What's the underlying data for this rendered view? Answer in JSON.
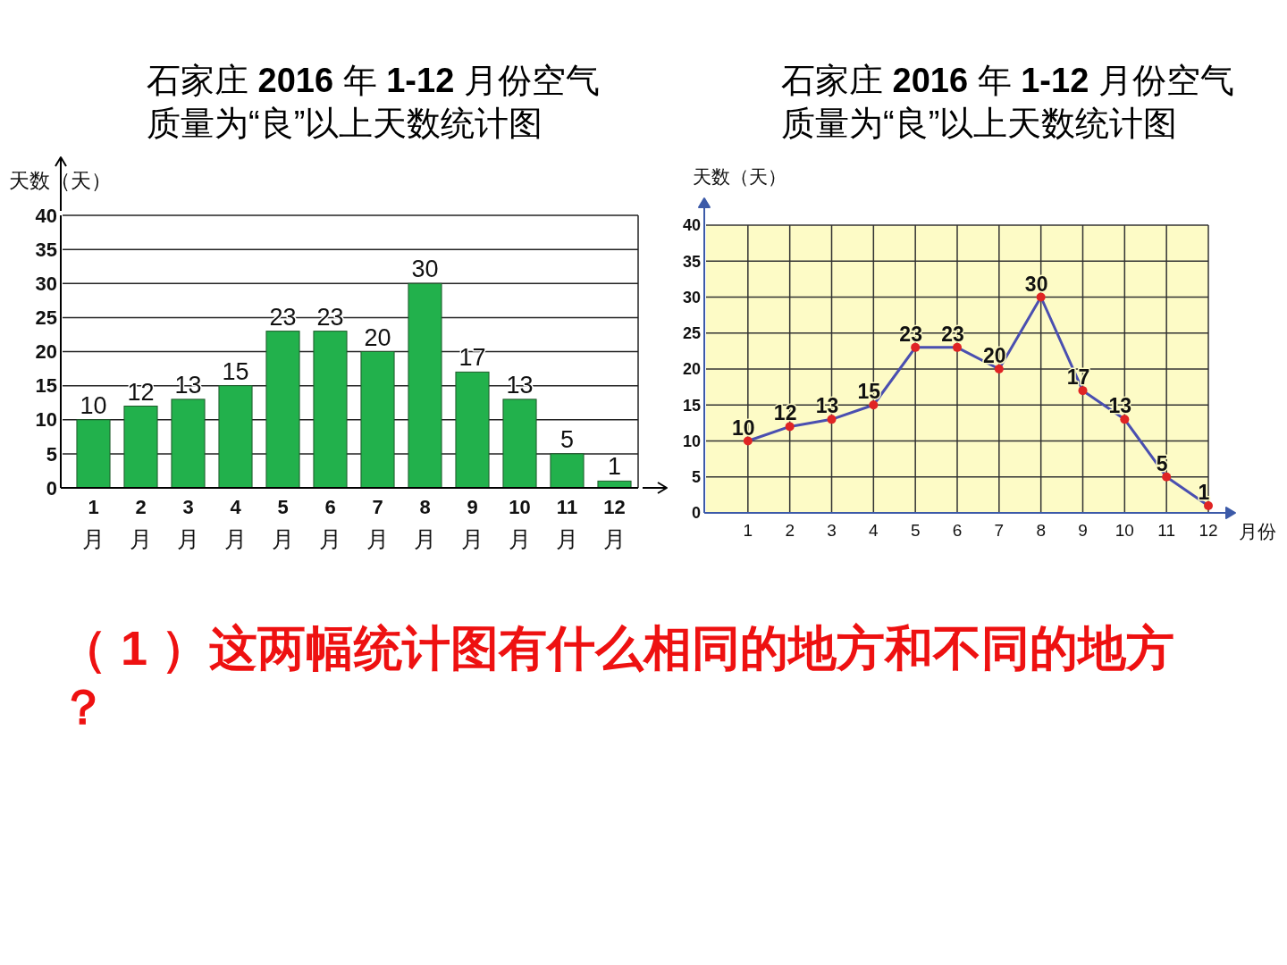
{
  "chart_data": [
    {
      "type": "bar",
      "title": "石家庄 2016 年 1-12 月份空气质量为“良”以上天数统计图",
      "ylabel": "天数（天）",
      "categories": [
        "1\n月",
        "2\n月",
        "3\n月",
        "4\n月",
        "5\n月",
        "6\n月",
        "7\n月",
        "8\n月",
        "9\n月",
        "10\n月",
        "11\n月",
        "12\n月"
      ],
      "values": [
        10,
        12,
        13,
        15,
        23,
        23,
        20,
        30,
        17,
        13,
        5,
        1
      ],
      "color": "#22b14c",
      "ylim": [
        0,
        40
      ],
      "yticks": [
        0,
        5,
        10,
        15,
        20,
        25,
        30,
        35,
        40
      ],
      "grid": "y",
      "data_labels": true,
      "annotations": [
        "（ 1 ）这两幅统计图有什么相同的地方和不同的地方？"
      ]
    },
    {
      "type": "line",
      "title": "石家庄 2016 年 1-12 月份空气质量为“良”以上天数统计图",
      "ylabel": "天数（天）",
      "xlabel": "月份",
      "categories": [
        "1",
        "2",
        "3",
        "4",
        "5",
        "6",
        "7",
        "8",
        "9",
        "10",
        "11",
        "12"
      ],
      "series": [
        {
          "color": "#4a4fb0",
          "colors": [
            "#e02424",
            "#e02424",
            "#e02424",
            "#e02424",
            "#e02424",
            "#e02424",
            "#e02424",
            "#e02424",
            "#e02424",
            "#e02424",
            "#e02424",
            "#e02424"
          ],
          "values": [
            10,
            12,
            13,
            15,
            23,
            23,
            20,
            30,
            17,
            13,
            5,
            1
          ]
        }
      ],
      "ylim": [
        0,
        40
      ],
      "yticks": [
        0,
        5,
        10,
        15,
        20,
        25,
        30,
        35,
        40
      ],
      "grid": true,
      "marker": "circle",
      "data_labels": true
    }
  ]
}
